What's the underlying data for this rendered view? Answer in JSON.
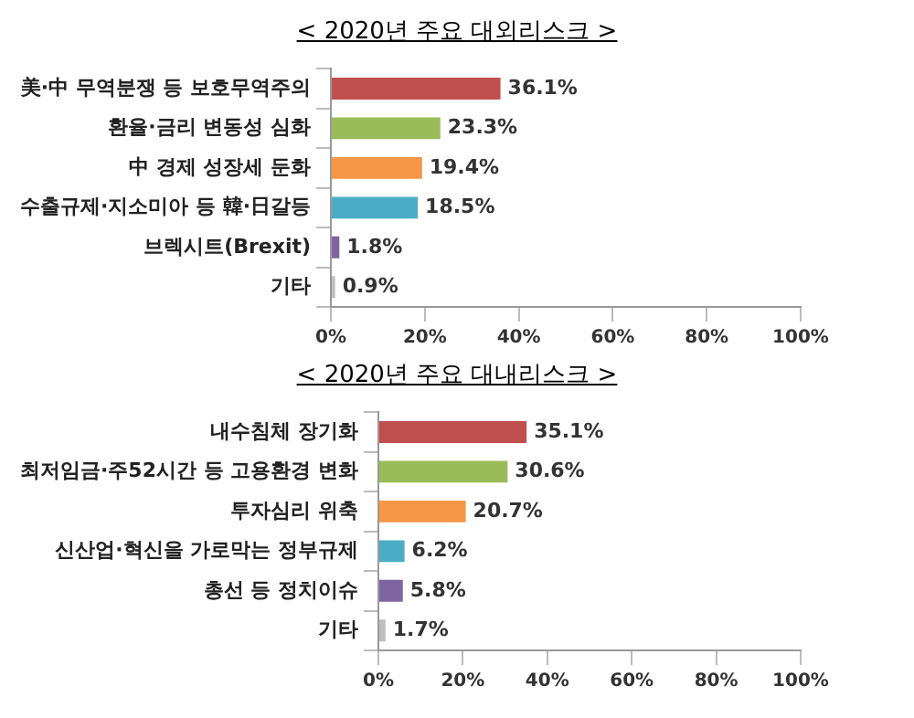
{
  "chart_data": [
    {
      "type": "bar",
      "orientation": "horizontal",
      "title": "< 2020년 주요 대외리스크 >",
      "categories": [
        "美·中 무역분쟁 등 보호무역주의",
        "환율·금리 변동성 심화",
        "中 경제 성장세 둔화",
        "수출규제·지소미아 등 韓·日갈등",
        "브렉시트(Brexit)",
        "기타"
      ],
      "values": [
        36.1,
        23.3,
        19.4,
        18.5,
        1.8,
        0.9
      ],
      "value_labels": [
        "36.1%",
        "23.3%",
        "19.4%",
        "18.5%",
        "1.8%",
        "0.9%"
      ],
      "colors": [
        "#c0504d",
        "#9bbb59",
        "#f79646",
        "#4bacc6",
        "#8064a2",
        "#bfbfbf"
      ],
      "xlim": [
        0,
        100
      ],
      "xticks": [
        {
          "value": 0,
          "label": "0%"
        },
        {
          "value": 20,
          "label": "20%"
        },
        {
          "value": 40,
          "label": "40%"
        },
        {
          "value": 60,
          "label": "60%"
        },
        {
          "value": 80,
          "label": "80%"
        },
        {
          "value": 100,
          "label": "100%"
        }
      ],
      "grid": false,
      "legend": false
    },
    {
      "type": "bar",
      "orientation": "horizontal",
      "title": "< 2020년 주요 대내리스크 >",
      "categories": [
        "내수침체 장기화",
        "최저임금·주52시간 등 고용환경 변화",
        "투자심리 위축",
        "신산업·혁신을 가로막는 정부규제",
        "총선 등 정치이슈",
        "기타"
      ],
      "values": [
        35.1,
        30.6,
        20.7,
        6.2,
        5.8,
        1.7
      ],
      "value_labels": [
        "35.1%",
        "30.6%",
        "20.7%",
        "6.2%",
        "5.8%",
        "1.7%"
      ],
      "colors": [
        "#c0504d",
        "#9bbb59",
        "#f79646",
        "#4bacc6",
        "#8064a2",
        "#bfbfbf"
      ],
      "xlim": [
        0,
        100
      ],
      "xticks": [
        {
          "value": 0,
          "label": "0%"
        },
        {
          "value": 20,
          "label": "20%"
        },
        {
          "value": 40,
          "label": "40%"
        },
        {
          "value": 60,
          "label": "60%"
        },
        {
          "value": 80,
          "label": "80%"
        },
        {
          "value": 100,
          "label": "100%"
        }
      ],
      "grid": false,
      "legend": false
    }
  ]
}
